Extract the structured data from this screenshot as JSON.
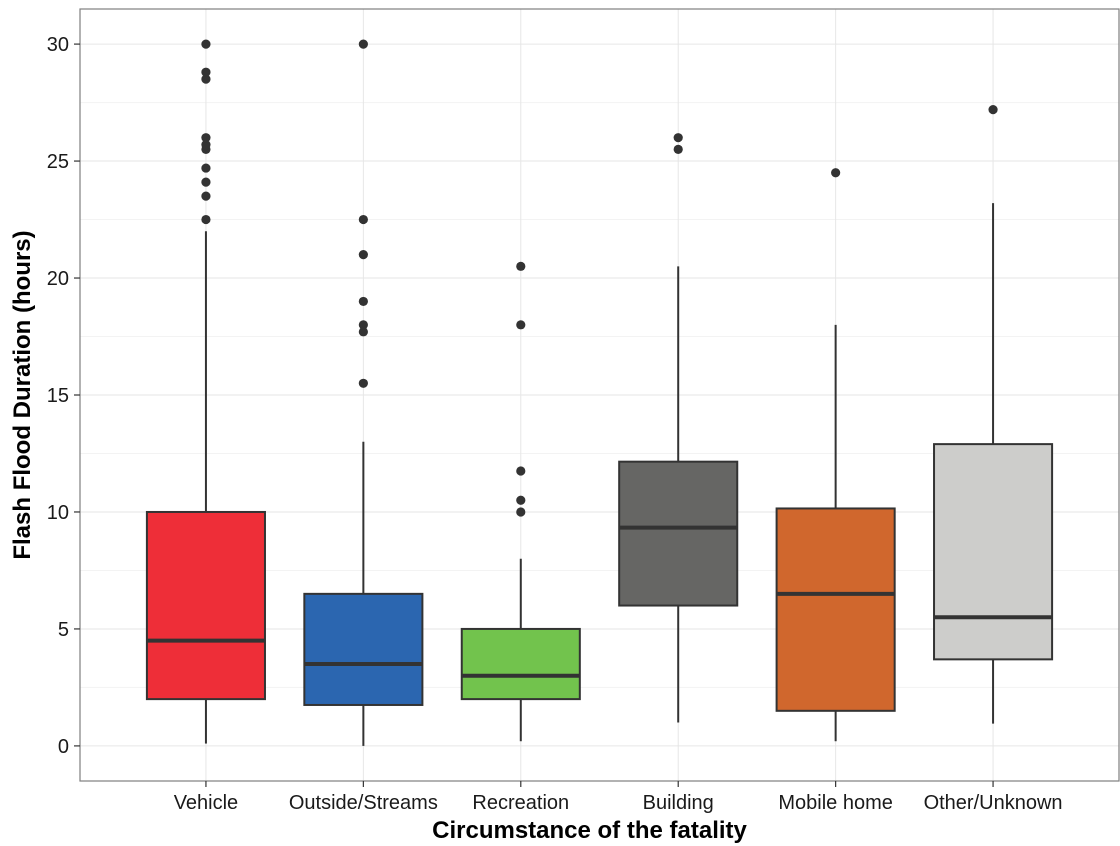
{
  "chart_data": {
    "type": "box",
    "title": "",
    "xlabel": "Circumstance of the fatality",
    "ylabel": "Flash Flood Duration (hours)",
    "ylim": [
      -1.5,
      31.5
    ],
    "yticks": [
      0,
      5,
      10,
      15,
      20,
      25,
      30
    ],
    "grid": true,
    "legend": "none",
    "categories": [
      "Vehicle",
      "Outside/Streams",
      "Recreation",
      "Building",
      "Mobile home",
      "Other/Unknown"
    ],
    "boxes": [
      {
        "name": "Vehicle",
        "color": "#ee2e38",
        "whisker_low": 0.1,
        "q1": 2.0,
        "median": 4.5,
        "q3": 10.0,
        "whisker_high": 22.0,
        "outliers": [
          22.5,
          23.5,
          24.1,
          24.7,
          25.5,
          25.7,
          26.0,
          28.5,
          28.8,
          30.0
        ]
      },
      {
        "name": "Outside/Streams",
        "color": "#2b66b0",
        "whisker_low": 0.0,
        "q1": 1.75,
        "median": 3.5,
        "q3": 6.5,
        "whisker_high": 13.0,
        "outliers": [
          15.5,
          17.7,
          18.0,
          19.0,
          21.0,
          22.5,
          30.0
        ]
      },
      {
        "name": "Recreation",
        "color": "#72c34d",
        "whisker_low": 0.2,
        "q1": 2.0,
        "median": 3.0,
        "q3": 5.0,
        "whisker_high": 8.0,
        "outliers": [
          10.0,
          10.5,
          11.75,
          18.0,
          20.5
        ]
      },
      {
        "name": "Building",
        "color": "#666664",
        "whisker_low": 1.0,
        "q1": 6.0,
        "median": 9.33,
        "q3": 12.15,
        "whisker_high": 20.5,
        "outliers": [
          25.5,
          26.0
        ]
      },
      {
        "name": "Mobile home",
        "color": "#d0672d",
        "whisker_low": 0.2,
        "q1": 1.5,
        "median": 6.5,
        "q3": 10.15,
        "whisker_high": 18.0,
        "outliers": [
          24.5
        ]
      },
      {
        "name": "Other/Unknown",
        "color": "#cdcdcb",
        "whisker_low": 0.95,
        "q1": 3.7,
        "median": 5.5,
        "q3": 12.9,
        "whisker_high": 23.2,
        "outliers": [
          27.2
        ]
      }
    ]
  }
}
